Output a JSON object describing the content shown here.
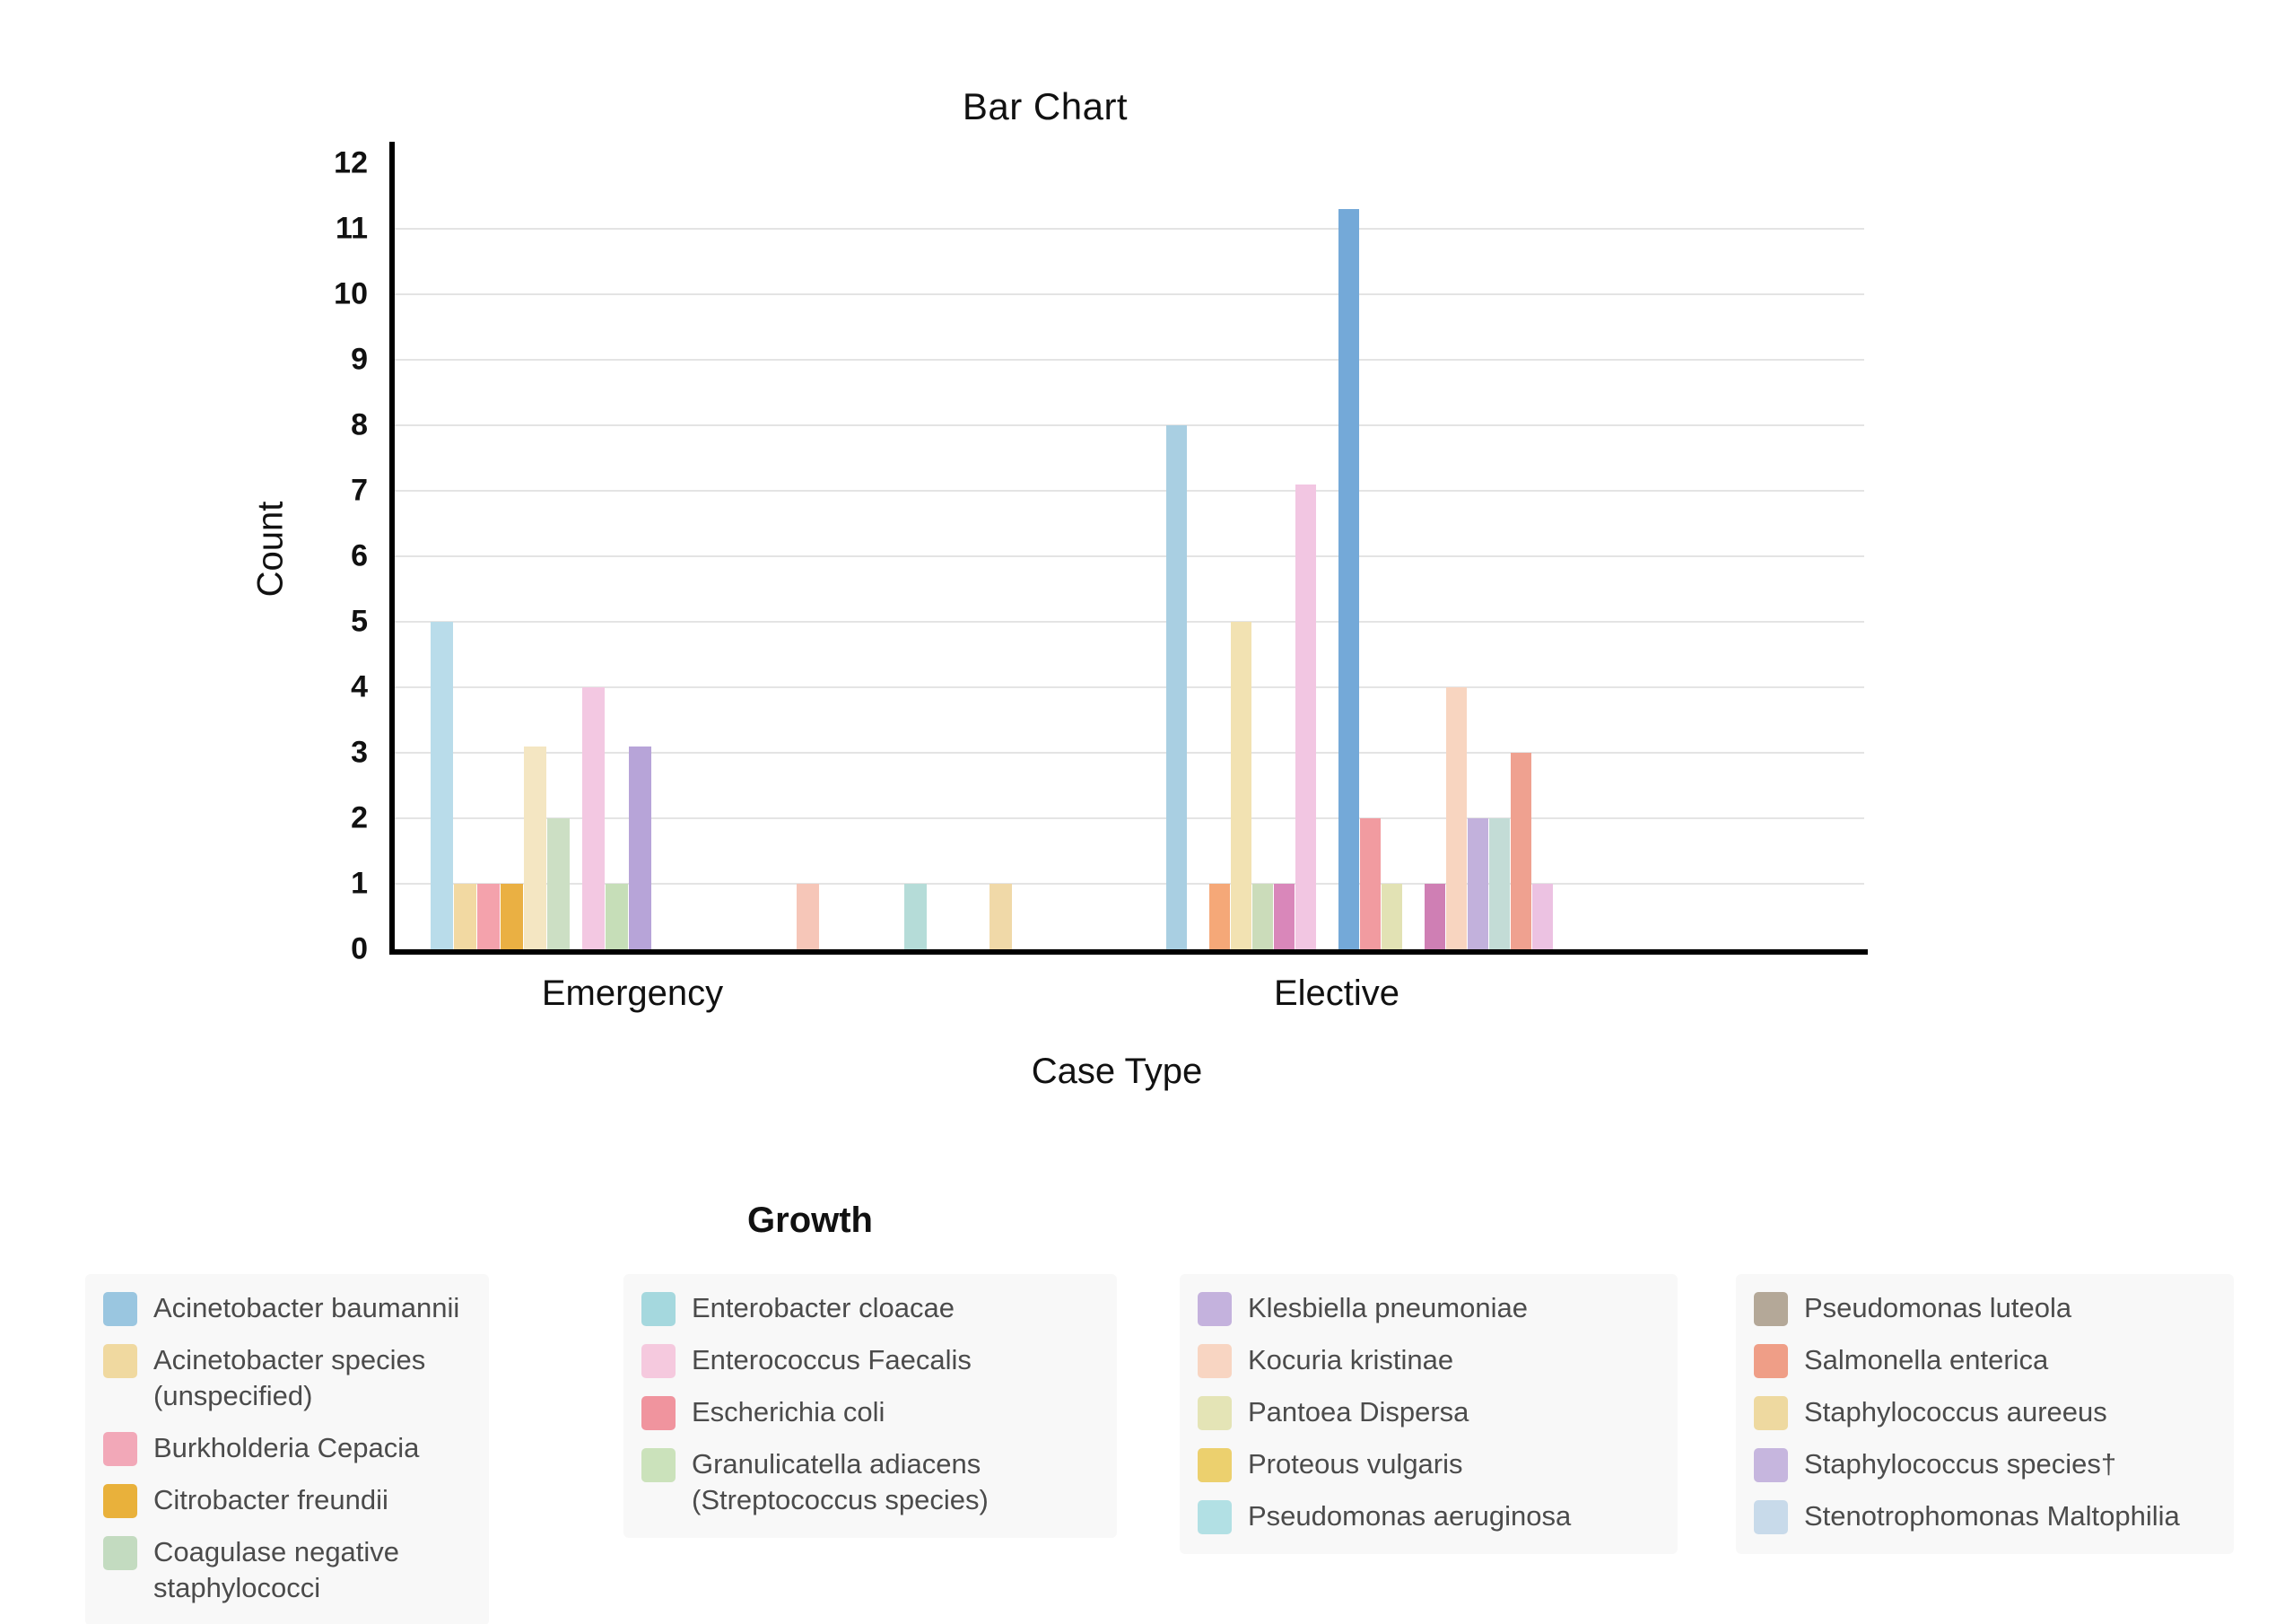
{
  "chart_data": {
    "type": "bar",
    "title": "Bar Chart",
    "xlabel": "Case Type",
    "ylabel": "Count",
    "ylim": [
      0,
      12
    ],
    "yticks": [
      0,
      1,
      2,
      3,
      4,
      5,
      6,
      7,
      8,
      9,
      10,
      11,
      12
    ],
    "gridlines": [
      1,
      2,
      3,
      4,
      5,
      6,
      7,
      8,
      9,
      10,
      11
    ],
    "grid": "horizontal light gray",
    "legend_position": "bottom",
    "categories": [
      "Emergency",
      "Elective"
    ],
    "groups": [
      {
        "category": "Emergency",
        "bars": [
          {
            "species": "Acinetobacter baumannii",
            "value": 5,
            "color": "#b9dcea"
          },
          {
            "species": "Acinetobacter species (unspecified)",
            "value": 1,
            "color": "#f2d9a2"
          },
          {
            "species": "Burkholderia Cepacia",
            "value": 1,
            "color": "#f4a2ac"
          },
          {
            "species": "Citrobacter freundii",
            "value": 1,
            "color": "#eab043"
          },
          {
            "species": "Staphylococcus aureeus",
            "value": 3.1,
            "color": "#f4e6c2"
          },
          {
            "species": "Coagulase negative staphylococci",
            "value": 2,
            "color": "#ccdfc4"
          },
          {
            "species": "Enterococcus Faecalis",
            "value": 4,
            "color": "#f3c8e2"
          },
          {
            "species": "Granulicatella adiacens (Streptococcus species)",
            "value": 1,
            "color": "#c6deb8"
          },
          {
            "species": "Klesbiella pneumoniae",
            "value": 3.1,
            "color": "#b7a4d8"
          },
          {
            "species": "Kocuria kristinae",
            "value": 1,
            "color": "#f6c6b8"
          },
          {
            "species": "Pseudomonas aeruginosa",
            "value": 1,
            "color": "#b5dcd8"
          },
          {
            "species": "Proteous vulgaris",
            "value": 1,
            "color": "#f0d9a8"
          }
        ]
      },
      {
        "category": "Elective",
        "bars": [
          {
            "species": "Enterobacter cloacae",
            "value": 8,
            "color": "#a9cfe2"
          },
          {
            "species": "Citrobacter freundii",
            "value": 1,
            "color": "#f5a878"
          },
          {
            "species": "Staphylococcus aureeus",
            "value": 5,
            "color": "#f2e2b2"
          },
          {
            "species": "Coagulase negative staphylococci",
            "value": 1,
            "color": "#cbdcba"
          },
          {
            "species": "Burkholderia Cepacia",
            "value": 1,
            "color": "#d987ba"
          },
          {
            "species": "Enterococcus Faecalis",
            "value": 7.1,
            "color": "#f2c6e2"
          },
          {
            "species": "Acinetobacter baumannii",
            "value": 11.3,
            "color": "#74a9d8"
          },
          {
            "species": "Escherichia coli",
            "value": 2,
            "color": "#f19ba0"
          },
          {
            "species": "Pantoea Dispersa",
            "value": 1,
            "color": "#e2e2b4"
          },
          {
            "species": "Staphylococcus species†",
            "value": 1,
            "color": "#cf7fb4"
          },
          {
            "species": "Kocuria kristinae",
            "value": 4,
            "color": "#f8d5c0"
          },
          {
            "species": "Klesbiella pneumoniae",
            "value": 2,
            "color": "#c2b1dc"
          },
          {
            "species": "Pseudomonas aeruginosa",
            "value": 2,
            "color": "#c3dcd6"
          },
          {
            "species": "Salmonella enterica",
            "value": 3,
            "color": "#efa190"
          },
          {
            "species": "Pseudomonas luteola",
            "value": 1,
            "color": "#ecc2e2"
          }
        ]
      }
    ]
  },
  "legend": {
    "title": "Growth",
    "columns": [
      [
        {
          "label": "Acinetobacter baumannii",
          "color": "#9ac6e0"
        },
        {
          "label": "Acinetobacter species (unspecified)",
          "color": "#f0d9a0"
        },
        {
          "label": "Burkholderia Cepacia",
          "color": "#f2a8b8"
        },
        {
          "label": "Citrobacter freundii",
          "color": "#e9b13b"
        },
        {
          "label": "Coagulase negative staphylococci",
          "color": "#c3dbc0"
        }
      ],
      [
        {
          "label": "Enterobacter cloacae",
          "color": "#a5d8de"
        },
        {
          "label": "Enterococcus Faecalis",
          "color": "#f5c9de"
        },
        {
          "label": "Escherichia coli",
          "color": "#f0949e"
        },
        {
          "label": "Granulicatella adiacens (Streptococcus species)",
          "color": "#cbe2bb"
        }
      ],
      [
        {
          "label": "Klesbiella pneumoniae",
          "color": "#c4b2dd"
        },
        {
          "label": "Kocuria kristinae",
          "color": "#f8d5c2"
        },
        {
          "label": "Pantoea Dispersa",
          "color": "#e4e4b6"
        },
        {
          "label": "Proteous vulgaris",
          "color": "#ecd06e"
        },
        {
          "label": "Pseudomonas aeruginosa",
          "color": "#b2e0e4"
        }
      ],
      [
        {
          "label": "Pseudomonas luteola",
          "color": "#b4a898"
        },
        {
          "label": "Salmonella enterica",
          "color": "#ef9e87"
        },
        {
          "label": "Staphylococcus aureeus",
          "color": "#eed9a0"
        },
        {
          "label": "Staphylococcus species†",
          "color": "#c6b6de"
        },
        {
          "label": "Stenotrophomonas Maltophilia",
          "color": "#c8daea"
        }
      ]
    ]
  }
}
